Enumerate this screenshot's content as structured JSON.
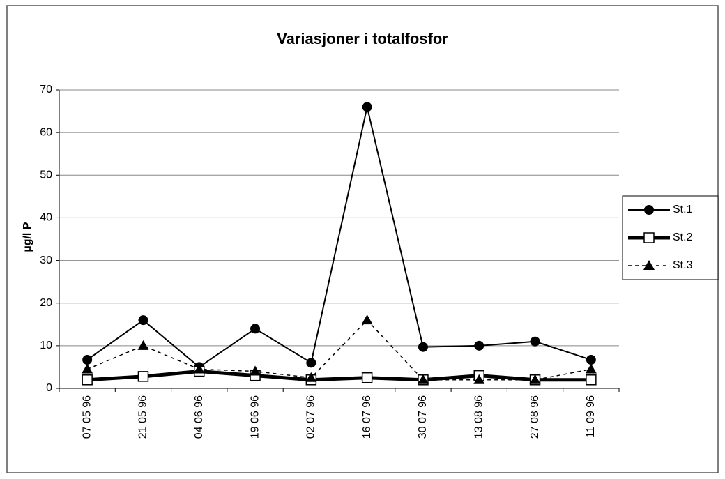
{
  "chart_data": {
    "type": "line",
    "title": "Variasjoner i totalfosfor",
    "y_label": "µg/l P",
    "categories": [
      "07 05 96",
      "21 05 96",
      "04 06 96",
      "19 06 96",
      "02 07 96",
      "16 07 96",
      "30 07 96",
      "13 08 96",
      "27 08 96",
      "11 09 96"
    ],
    "series": [
      {
        "name": "St.1",
        "color": "#000000",
        "marker": "circle",
        "line_width": 2,
        "dashed": false,
        "values": [
          6.7,
          16,
          5,
          14,
          6,
          66,
          9.7,
          10,
          11,
          6.7
        ]
      },
      {
        "name": "St.2",
        "color": "#000000",
        "marker": "square",
        "line_width": 5,
        "dashed": false,
        "values": [
          2,
          2.8,
          4,
          3,
          2,
          2.5,
          2,
          3,
          2,
          2
        ]
      },
      {
        "name": "St.3",
        "color": "#000000",
        "marker": "triangle",
        "line_width": 1.5,
        "dashed": true,
        "values": [
          4.5,
          10,
          4.5,
          4,
          2.5,
          16,
          2,
          2,
          2,
          4.5
        ]
      }
    ],
    "ylim": [
      0,
      70
    ],
    "yticks": [
      0,
      10,
      20,
      30,
      40,
      50,
      60,
      70
    ],
    "grid": true,
    "legend": "right"
  }
}
